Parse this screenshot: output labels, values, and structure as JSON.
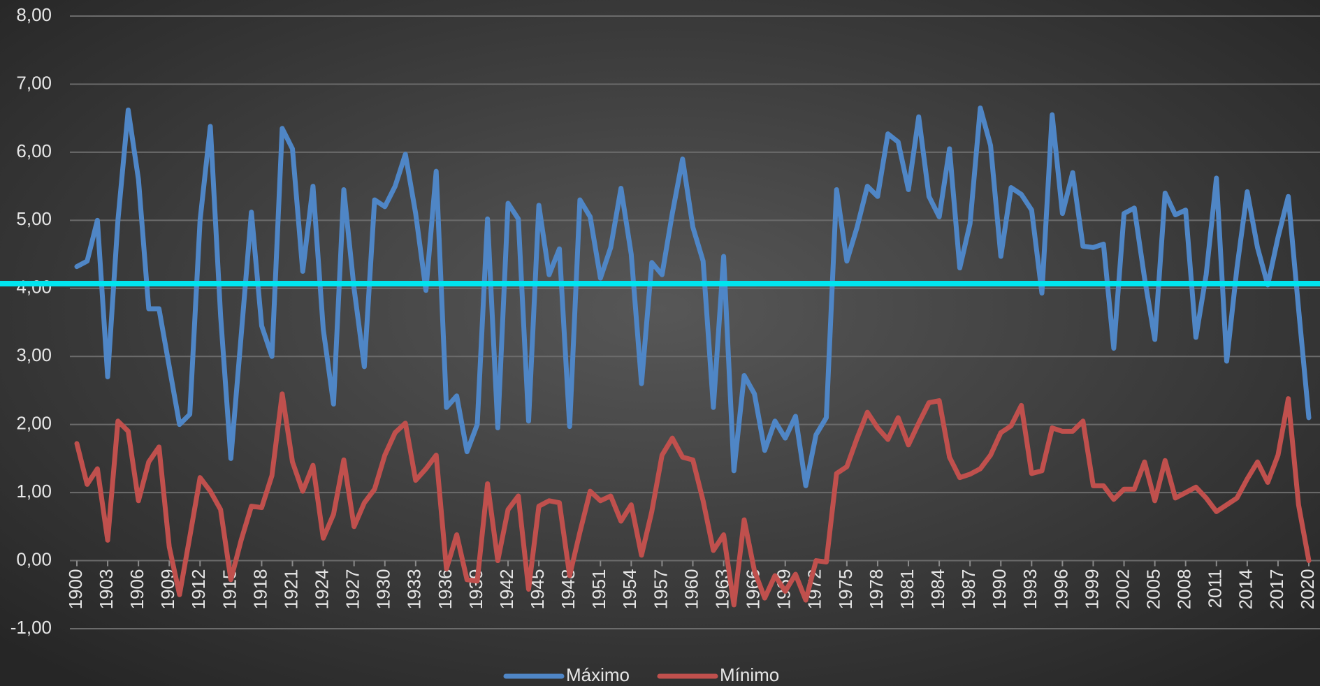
{
  "chart_data": {
    "type": "line",
    "x": [
      1900,
      1901,
      1902,
      1903,
      1904,
      1905,
      1906,
      1907,
      1908,
      1909,
      1910,
      1911,
      1912,
      1913,
      1914,
      1915,
      1916,
      1917,
      1918,
      1919,
      1920,
      1921,
      1922,
      1923,
      1924,
      1925,
      1926,
      1927,
      1928,
      1929,
      1930,
      1931,
      1932,
      1933,
      1934,
      1935,
      1936,
      1937,
      1938,
      1939,
      1940,
      1941,
      1942,
      1943,
      1944,
      1945,
      1946,
      1947,
      1948,
      1949,
      1950,
      1951,
      1952,
      1953,
      1954,
      1955,
      1956,
      1957,
      1958,
      1959,
      1960,
      1961,
      1962,
      1963,
      1964,
      1965,
      1966,
      1967,
      1968,
      1969,
      1970,
      1971,
      1972,
      1973,
      1974,
      1975,
      1976,
      1977,
      1978,
      1979,
      1980,
      1981,
      1982,
      1983,
      1984,
      1985,
      1986,
      1987,
      1988,
      1989,
      1990,
      1991,
      1992,
      1993,
      1994,
      1995,
      1996,
      1997,
      1998,
      1999,
      2000,
      2001,
      2002,
      2003,
      2004,
      2005,
      2006,
      2007,
      2008,
      2009,
      2010,
      2011,
      2012,
      2013,
      2014,
      2015,
      2016,
      2017,
      2018,
      2019,
      2020
    ],
    "series": [
      {
        "name": "Máximo",
        "color": "#4f86c6",
        "values": [
          4.32,
          4.4,
          5.0,
          2.7,
          5.0,
          6.62,
          5.6,
          3.7,
          3.7,
          2.85,
          2.0,
          2.15,
          5.0,
          6.38,
          3.6,
          1.5,
          3.3,
          5.12,
          3.45,
          3.0,
          6.35,
          6.05,
          4.25,
          5.5,
          3.4,
          2.3,
          5.45,
          4.0,
          2.85,
          5.3,
          5.2,
          5.5,
          5.97,
          5.1,
          3.97,
          5.72,
          2.25,
          2.42,
          1.6,
          2.0,
          5.02,
          1.95,
          5.25,
          5.02,
          2.05,
          5.22,
          4.2,
          4.58,
          1.97,
          5.3,
          5.05,
          4.15,
          4.6,
          5.47,
          4.5,
          2.6,
          4.38,
          4.2,
          5.1,
          5.9,
          4.9,
          4.4,
          2.25,
          4.47,
          1.32,
          2.72,
          2.45,
          1.62,
          2.05,
          1.8,
          2.12,
          1.1,
          1.85,
          2.1,
          5.45,
          4.4,
          4.9,
          5.5,
          5.35,
          6.27,
          6.15,
          5.45,
          6.52,
          5.35,
          5.05,
          6.05,
          4.3,
          4.95,
          6.65,
          6.1,
          4.47,
          5.48,
          5.38,
          5.15,
          3.93,
          6.55,
          5.1,
          5.7,
          4.62,
          4.6,
          4.65,
          3.12,
          5.1,
          5.18,
          4.15,
          3.25,
          5.4,
          5.08,
          5.15,
          3.28,
          4.2,
          5.62,
          2.93,
          4.3,
          5.42,
          4.6,
          4.05,
          4.75,
          5.35,
          3.7,
          2.1
        ]
      },
      {
        "name": "Mínimo",
        "color": "#c0504d",
        "values": [
          1.72,
          1.12,
          1.35,
          0.3,
          2.05,
          1.9,
          0.88,
          1.45,
          1.67,
          0.2,
          -0.5,
          0.35,
          1.22,
          1.02,
          0.75,
          -0.28,
          0.3,
          0.8,
          0.78,
          1.25,
          2.45,
          1.45,
          1.02,
          1.4,
          0.33,
          0.68,
          1.48,
          0.5,
          0.85,
          1.05,
          1.55,
          1.88,
          2.02,
          1.18,
          1.35,
          1.55,
          -0.12,
          0.38,
          -0.28,
          -0.3,
          1.13,
          0.0,
          0.75,
          0.95,
          -0.42,
          0.8,
          0.88,
          0.85,
          -0.22,
          0.42,
          1.02,
          0.88,
          0.95,
          0.58,
          0.82,
          0.08,
          0.72,
          1.55,
          1.8,
          1.52,
          1.48,
          0.88,
          0.15,
          0.38,
          -0.65,
          0.6,
          -0.15,
          -0.55,
          -0.22,
          -0.45,
          -0.2,
          -0.58,
          0.0,
          -0.02,
          1.28,
          1.38,
          1.8,
          2.18,
          1.95,
          1.78,
          2.1,
          1.7,
          2.02,
          2.32,
          2.35,
          1.52,
          1.22,
          1.27,
          1.35,
          1.55,
          1.88,
          1.98,
          2.28,
          1.28,
          1.32,
          1.95,
          1.9,
          1.9,
          2.05,
          1.1,
          1.1,
          0.9,
          1.05,
          1.05,
          1.45,
          0.88,
          1.47,
          0.92,
          1.0,
          1.08,
          0.92,
          0.72,
          0.82,
          0.92,
          1.2,
          1.45,
          1.15,
          1.55,
          2.38,
          0.82,
          0.0
        ]
      }
    ],
    "xlim": [
      1900,
      2020
    ],
    "xticks": [
      1900,
      1903,
      1906,
      1909,
      1912,
      1915,
      1918,
      1921,
      1924,
      1927,
      1930,
      1933,
      1936,
      1939,
      1942,
      1945,
      1948,
      1951,
      1954,
      1957,
      1960,
      1963,
      1966,
      1969,
      1972,
      1975,
      1978,
      1981,
      1984,
      1987,
      1990,
      1993,
      1996,
      1999,
      2002,
      2005,
      2008,
      2011,
      2014,
      2017,
      2020
    ],
    "ylim": [
      -1,
      8
    ],
    "yticks": [
      {
        "value": -1,
        "label": "-1,00"
      },
      {
        "value": 0,
        "label": "0,00"
      },
      {
        "value": 1,
        "label": "1,00"
      },
      {
        "value": 2,
        "label": "2,00"
      },
      {
        "value": 3,
        "label": "3,00"
      },
      {
        "value": 4,
        "label": "4,00"
      },
      {
        "value": 5,
        "label": "5,00"
      },
      {
        "value": 6,
        "label": "6,00"
      },
      {
        "value": 7,
        "label": "7,00"
      },
      {
        "value": 8,
        "label": "8,00"
      }
    ],
    "grid": true,
    "legend": "bottom",
    "reference_line": {
      "value": 4.07,
      "color": "#00e5ef"
    }
  }
}
